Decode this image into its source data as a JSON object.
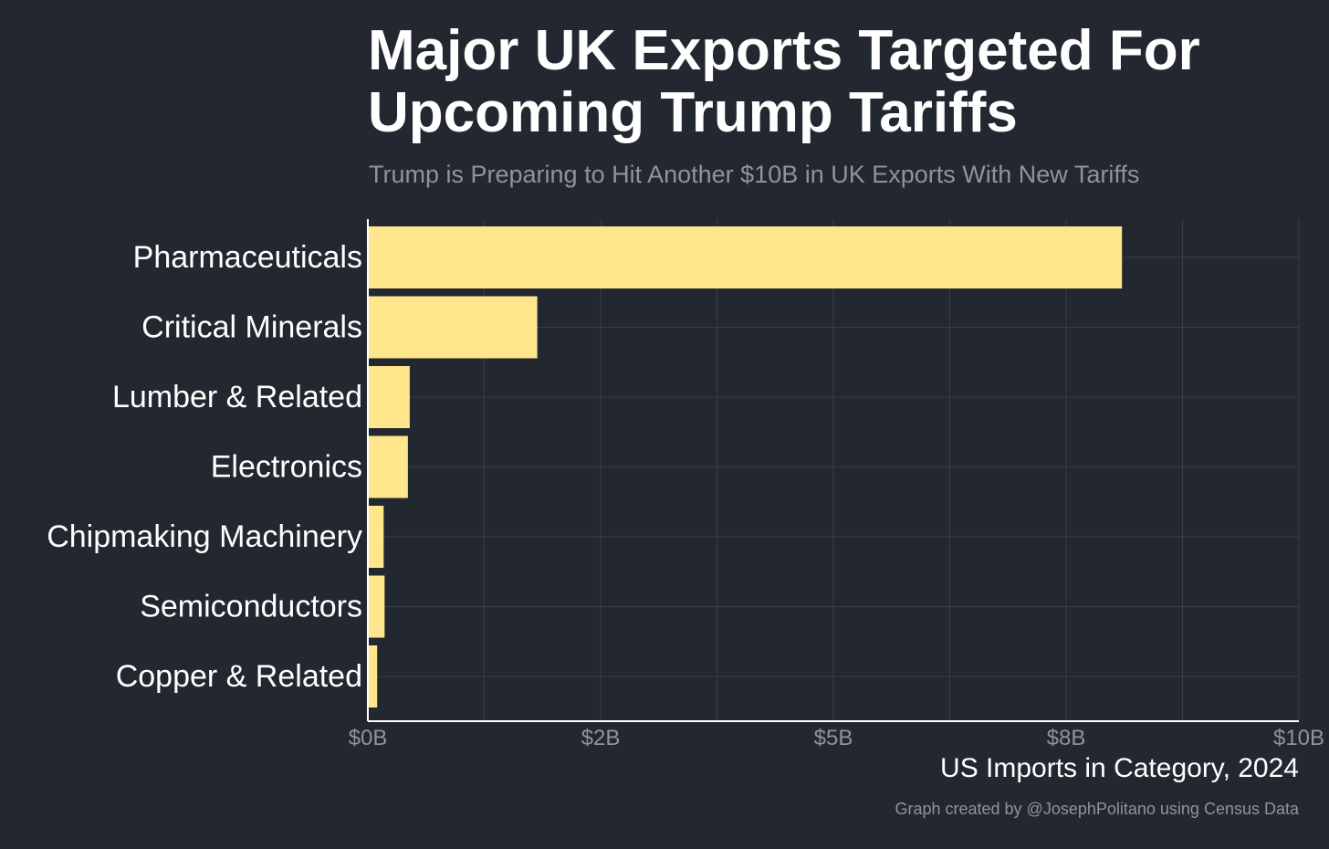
{
  "header": {
    "title_line1": "Major UK Exports Targeted For",
    "title_line2": "Upcoming Trump Tariffs",
    "subtitle": "Trump is Preparing to Hit Another $10B in UK Exports With New Tariffs"
  },
  "caption": "Graph created by @JosephPolitano using Census Data",
  "colors": {
    "background": "#23272f",
    "bar": "#ffe68c",
    "grid": "#3a3e47",
    "axis": "#ffffff",
    "category_text": "#ffffff",
    "tick_text": "#8f939b"
  },
  "chart_data": {
    "type": "bar",
    "orientation": "horizontal",
    "categories": [
      "Pharmaceuticals",
      "Critical Minerals",
      "Lumber & Related",
      "Electronics",
      "Chipmaking Machinery",
      "Semiconductors",
      "Copper & Related"
    ],
    "values": [
      8.1,
      1.82,
      0.45,
      0.43,
      0.17,
      0.18,
      0.1
    ],
    "value_unit": "billion USD",
    "xlabel": "US Imports in Category, 2024",
    "ylabel": "",
    "xlim": [
      0,
      10
    ],
    "x_ticks": [
      0,
      2.5,
      5,
      7.5,
      10
    ],
    "x_tick_labels": [
      "$0B",
      "$2B",
      "$5B",
      "$8B",
      "$10B"
    ],
    "grid": true,
    "legend": "none"
  }
}
